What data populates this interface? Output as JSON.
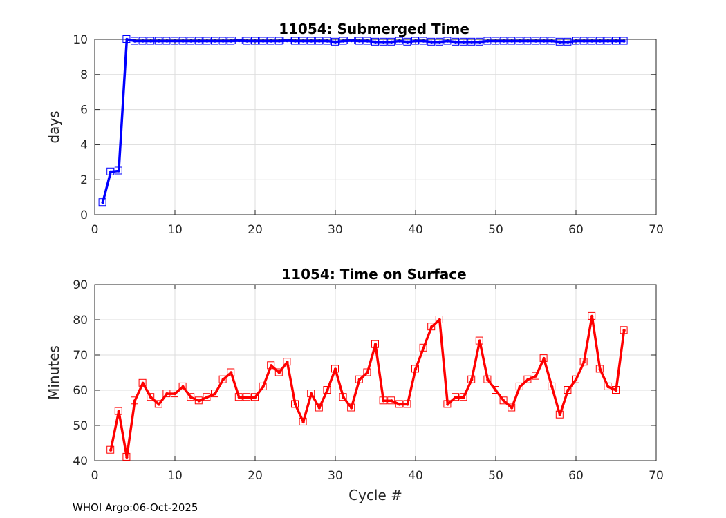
{
  "chart_data": [
    {
      "type": "line",
      "title": "11054: Submerged Time",
      "xlabel": "",
      "ylabel": "days",
      "xlim": [
        0,
        70
      ],
      "ylim": [
        0,
        10
      ],
      "xticks": [
        0,
        10,
        20,
        30,
        40,
        50,
        60,
        70
      ],
      "yticks": [
        0,
        2,
        4,
        6,
        8,
        10
      ],
      "grid": true,
      "color": "#0000ff",
      "marker": "square",
      "series": [
        {
          "name": "Submerged Time",
          "x": [
            1,
            2,
            3,
            4,
            5,
            6,
            7,
            8,
            9,
            10,
            11,
            12,
            13,
            14,
            15,
            16,
            17,
            18,
            19,
            20,
            21,
            22,
            23,
            24,
            25,
            26,
            27,
            28,
            29,
            30,
            31,
            32,
            33,
            34,
            35,
            36,
            37,
            38,
            39,
            40,
            41,
            42,
            43,
            44,
            45,
            46,
            47,
            48,
            49,
            50,
            51,
            52,
            53,
            54,
            55,
            56,
            57,
            58,
            59,
            60,
            61,
            62,
            63,
            64,
            65,
            66
          ],
          "values": [
            0.7,
            2.45,
            2.5,
            10.0,
            9.9,
            9.9,
            9.9,
            9.9,
            9.9,
            9.9,
            9.9,
            9.9,
            9.9,
            9.9,
            9.9,
            9.9,
            9.9,
            9.92,
            9.9,
            9.9,
            9.9,
            9.9,
            9.9,
            9.92,
            9.9,
            9.9,
            9.9,
            9.9,
            9.9,
            9.85,
            9.9,
            9.92,
            9.9,
            9.9,
            9.85,
            9.85,
            9.85,
            9.9,
            9.85,
            9.9,
            9.9,
            9.85,
            9.85,
            9.9,
            9.85,
            9.85,
            9.85,
            9.85,
            9.9,
            9.9,
            9.9,
            9.9,
            9.9,
            9.9,
            9.9,
            9.9,
            9.9,
            9.85,
            9.85,
            9.9,
            9.9,
            9.9,
            9.9,
            9.9,
            9.9,
            9.9
          ]
        }
      ]
    },
    {
      "type": "line",
      "title": "11054: Time on Surface",
      "xlabel": "Cycle #",
      "ylabel": "Minutes",
      "xlim": [
        0,
        70
      ],
      "ylim": [
        40,
        90
      ],
      "xticks": [
        0,
        10,
        20,
        30,
        40,
        50,
        60,
        70
      ],
      "yticks": [
        40,
        50,
        60,
        70,
        80,
        90
      ],
      "grid": true,
      "color": "#ff0000",
      "marker": "square",
      "series": [
        {
          "name": "Time on Surface",
          "x": [
            2,
            3,
            4,
            5,
            6,
            7,
            8,
            9,
            10,
            11,
            12,
            13,
            14,
            15,
            16,
            17,
            18,
            19,
            20,
            21,
            22,
            23,
            24,
            25,
            26,
            27,
            28,
            29,
            30,
            31,
            32,
            33,
            34,
            35,
            36,
            37,
            38,
            39,
            40,
            41,
            42,
            43,
            44,
            45,
            46,
            47,
            48,
            49,
            50,
            51,
            52,
            53,
            54,
            55,
            56,
            57,
            58,
            59,
            60,
            61,
            62,
            63,
            64,
            65,
            66
          ],
          "values": [
            43,
            54,
            41,
            57,
            62,
            58,
            56,
            59,
            59,
            61,
            58,
            57,
            58,
            59,
            63,
            65,
            58,
            58,
            58,
            61,
            67,
            65,
            68,
            56,
            51,
            59,
            55,
            60,
            66,
            58,
            55,
            63,
            65,
            73,
            57,
            57,
            56,
            56,
            66,
            72,
            78,
            80,
            56,
            58,
            58,
            63,
            74,
            63,
            60,
            57,
            55,
            61,
            63,
            64,
            69,
            61,
            53,
            60,
            63,
            68,
            81,
            66,
            61,
            60,
            77
          ]
        }
      ]
    }
  ],
  "footer": "WHOI Argo:06-Oct-2025"
}
